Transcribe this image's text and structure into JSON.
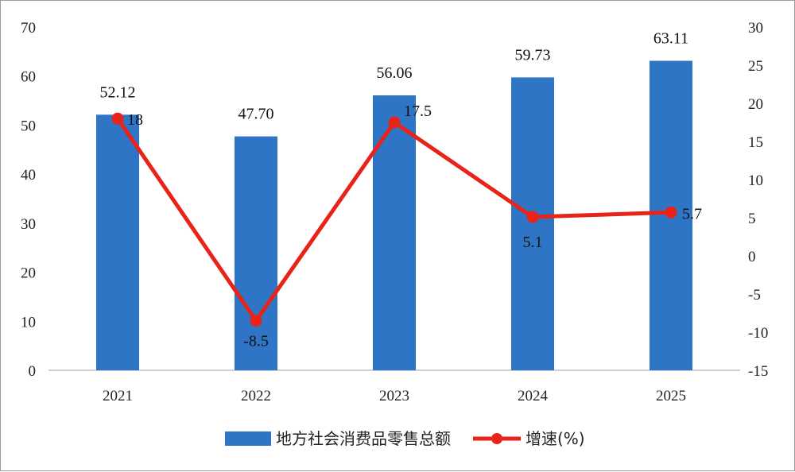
{
  "chart_data": {
    "type": "bar+line",
    "categories": [
      "2021",
      "2022",
      "2023",
      "2024",
      "2025"
    ],
    "series": [
      {
        "name": "地方社会消费品零售总额",
        "type": "bar",
        "axis": "left",
        "values": [
          52.12,
          47.7,
          56.06,
          59.73,
          63.11
        ],
        "labels": [
          "52.12",
          "47.70",
          "56.06",
          "59.73",
          "63.11"
        ],
        "color": "#2e75c6"
      },
      {
        "name": "增速(%)",
        "type": "line",
        "axis": "right",
        "values": [
          18,
          -8.5,
          17.5,
          5.1,
          5.7
        ],
        "labels": [
          "18",
          "-8.5",
          "17.5",
          "5.1",
          "5.7"
        ],
        "color": "#e8231a"
      }
    ],
    "y_left": {
      "min": 0,
      "max": 70,
      "step": 10,
      "ticks": [
        "0",
        "10",
        "20",
        "30",
        "40",
        "50",
        "60",
        "70"
      ]
    },
    "y_right": {
      "min": -15,
      "max": 30,
      "step": 5,
      "ticks": [
        "-15",
        "-10",
        "-5",
        "0",
        "5",
        "10",
        "15",
        "20",
        "25",
        "30"
      ]
    },
    "grid": false,
    "legend_position": "bottom-center"
  }
}
